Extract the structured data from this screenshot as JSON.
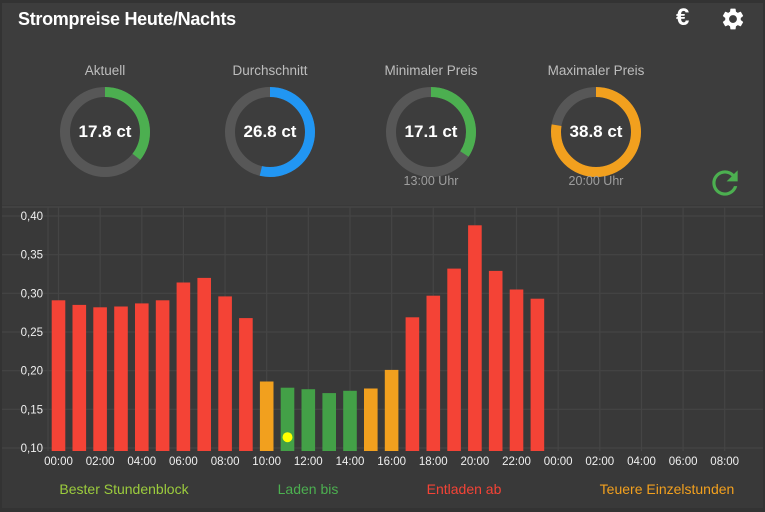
{
  "header": {
    "title": "Strompreise Heute/Nachts",
    "euro_icon": "€",
    "settings_icon": "gear"
  },
  "gauges": [
    {
      "label": "Aktuell",
      "value_text": "17.8 ct",
      "value": 17.8,
      "max": 50,
      "arc_color": "#4caf50",
      "sub_text": ""
    },
    {
      "label": "Durchschnitt",
      "value_text": "26.8 ct",
      "value": 26.8,
      "max": 50,
      "arc_color": "#2196f3",
      "sub_text": ""
    },
    {
      "label": "Minimaler Preis",
      "value_text": "17.1 ct",
      "value": 17.1,
      "max": 50,
      "arc_color": "#4caf50",
      "sub_text": "13:00 Uhr"
    },
    {
      "label": "Maximaler Preis",
      "value_text": "38.8 ct",
      "value": 38.8,
      "max": 50,
      "arc_color": "#f2a01e",
      "sub_text": "20:00 Uhr"
    }
  ],
  "refresh_icon_color": "#4caf50",
  "chart_data": {
    "type": "bar",
    "title": "",
    "xlabel": "",
    "ylabel": "",
    "ylim": [
      0.095,
      0.42
    ],
    "grid": true,
    "yticks": [
      {
        "value": 0.1,
        "label": "0,10"
      },
      {
        "value": 0.15,
        "label": "0,15"
      },
      {
        "value": 0.2,
        "label": "0,20"
      },
      {
        "value": 0.25,
        "label": "0,25"
      },
      {
        "value": 0.3,
        "label": "0,30"
      },
      {
        "value": 0.35,
        "label": "0,35"
      },
      {
        "value": 0.4,
        "label": "0,40"
      }
    ],
    "xtick_labels": [
      "00:00",
      "02:00",
      "04:00",
      "06:00",
      "08:00",
      "10:00",
      "12:00",
      "14:00",
      "16:00",
      "18:00",
      "20:00",
      "22:00",
      "00:00",
      "02:00",
      "04:00",
      "06:00",
      "08:00"
    ],
    "categories": [
      "00:00",
      "01:00",
      "02:00",
      "03:00",
      "04:00",
      "05:00",
      "06:00",
      "07:00",
      "08:00",
      "09:00",
      "10:00",
      "11:00",
      "12:00",
      "13:00",
      "14:00",
      "15:00",
      "16:00",
      "17:00",
      "18:00",
      "19:00",
      "20:00",
      "21:00",
      "22:00",
      "23:00"
    ],
    "values": [
      0.291,
      0.285,
      0.282,
      0.283,
      0.287,
      0.291,
      0.314,
      0.32,
      0.296,
      0.268,
      0.186,
      0.178,
      0.176,
      0.171,
      0.174,
      0.177,
      0.201,
      0.269,
      0.297,
      0.332,
      0.388,
      0.329,
      0.305,
      0.293
    ],
    "bar_colors": [
      "red",
      "red",
      "red",
      "red",
      "red",
      "red",
      "red",
      "red",
      "red",
      "red",
      "orange",
      "green",
      "green",
      "green",
      "green",
      "orange",
      "orange",
      "red",
      "red",
      "red",
      "red",
      "red",
      "red",
      "red"
    ],
    "palette": {
      "red": "#f44336",
      "green": "#43a047",
      "orange": "#f2a01e"
    },
    "marker": {
      "hour_index": 11,
      "value": 0.114,
      "color": "#ffff00"
    }
  },
  "legend": {
    "items": [
      {
        "label": "Bester Stundenblock",
        "color": "#9ccc3d"
      },
      {
        "label": "Laden bis",
        "color": "#4caf50"
      },
      {
        "label": "Entladen ab",
        "color": "#f44336"
      },
      {
        "label": "Teuere Einzelstunden",
        "color": "#f2a01e"
      }
    ]
  }
}
